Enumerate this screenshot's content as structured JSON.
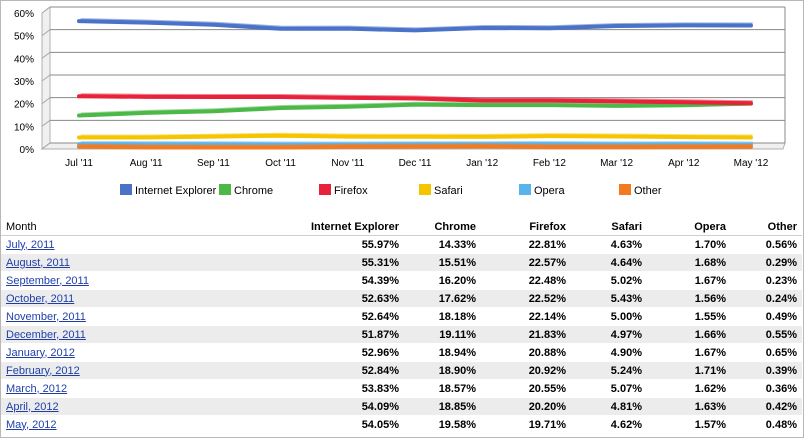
{
  "chart_data": {
    "type": "line",
    "title": "",
    "xlabel": "",
    "ylabel": "",
    "x": [
      "Jul '11",
      "Aug '11",
      "Sep '11",
      "Oct '11",
      "Nov '11",
      "Dec '11",
      "Jan '12",
      "Feb '12",
      "Mar '12",
      "Apr '12",
      "May '12"
    ],
    "ylim": [
      0,
      60
    ],
    "yticks": [
      0,
      10,
      20,
      30,
      40,
      50,
      60
    ],
    "ytick_labels": [
      "0%",
      "10%",
      "20%",
      "30%",
      "40%",
      "50%",
      "60%"
    ],
    "grid": true,
    "legend_position": "bottom",
    "series": [
      {
        "name": "Internet Explorer",
        "color": "#4a72c9",
        "values": [
          55.97,
          55.31,
          54.39,
          52.63,
          52.64,
          51.87,
          52.96,
          52.84,
          53.83,
          54.09,
          54.05
        ]
      },
      {
        "name": "Chrome",
        "color": "#4cb848",
        "values": [
          14.33,
          15.51,
          16.2,
          17.62,
          18.18,
          19.11,
          18.94,
          18.9,
          18.57,
          18.85,
          19.58
        ]
      },
      {
        "name": "Firefox",
        "color": "#e8223a",
        "values": [
          22.81,
          22.57,
          22.48,
          22.52,
          22.14,
          21.83,
          20.88,
          20.92,
          20.55,
          20.2,
          19.71
        ]
      },
      {
        "name": "Safari",
        "color": "#f5c500",
        "values": [
          4.63,
          4.64,
          5.02,
          5.43,
          5.0,
          4.97,
          4.9,
          5.24,
          5.07,
          4.81,
          4.62
        ]
      },
      {
        "name": "Opera",
        "color": "#5ab4ec",
        "values": [
          1.7,
          1.68,
          1.67,
          1.56,
          1.55,
          1.66,
          1.67,
          1.71,
          1.62,
          1.63,
          1.57
        ]
      },
      {
        "name": "Other",
        "color": "#f47a1f",
        "values": [
          0.56,
          0.29,
          0.23,
          0.24,
          0.49,
          0.55,
          0.65,
          0.39,
          0.36,
          0.42,
          0.48
        ]
      }
    ]
  },
  "table": {
    "headers": [
      "Month",
      "Internet Explorer",
      "Chrome",
      "Firefox",
      "Safari",
      "Opera",
      "Other"
    ],
    "rows": [
      [
        "July, 2011",
        "55.97%",
        "14.33%",
        "22.81%",
        "4.63%",
        "1.70%",
        "0.56%"
      ],
      [
        "August, 2011",
        "55.31%",
        "15.51%",
        "22.57%",
        "4.64%",
        "1.68%",
        "0.29%"
      ],
      [
        "September, 2011",
        "54.39%",
        "16.20%",
        "22.48%",
        "5.02%",
        "1.67%",
        "0.23%"
      ],
      [
        "October, 2011",
        "52.63%",
        "17.62%",
        "22.52%",
        "5.43%",
        "1.56%",
        "0.24%"
      ],
      [
        "November, 2011",
        "52.64%",
        "18.18%",
        "22.14%",
        "5.00%",
        "1.55%",
        "0.49%"
      ],
      [
        "December, 2011",
        "51.87%",
        "19.11%",
        "21.83%",
        "4.97%",
        "1.66%",
        "0.55%"
      ],
      [
        "January, 2012",
        "52.96%",
        "18.94%",
        "20.88%",
        "4.90%",
        "1.67%",
        "0.65%"
      ],
      [
        "February, 2012",
        "52.84%",
        "18.90%",
        "20.92%",
        "5.24%",
        "1.71%",
        "0.39%"
      ],
      [
        "March, 2012",
        "53.83%",
        "18.57%",
        "20.55%",
        "5.07%",
        "1.62%",
        "0.36%"
      ],
      [
        "April, 2012",
        "54.09%",
        "18.85%",
        "20.20%",
        "4.81%",
        "1.63%",
        "0.42%"
      ],
      [
        "May, 2012",
        "54.05%",
        "19.58%",
        "19.71%",
        "4.62%",
        "1.57%",
        "0.48%"
      ]
    ]
  }
}
